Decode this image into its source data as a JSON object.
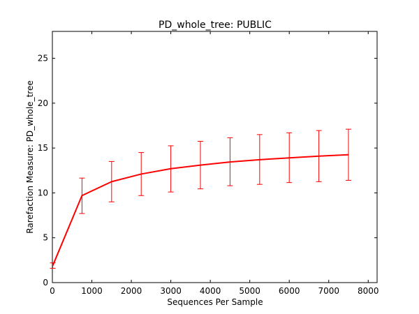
{
  "chart_data": {
    "type": "line",
    "title": "PD_whole_tree: PUBLIC",
    "xlabel": "Sequences Per Sample",
    "ylabel": "Rarefaction Measure: PD_whole_tree",
    "xlim": [
      0,
      8225
    ],
    "ylim": [
      0,
      28
    ],
    "xticks": [
      0,
      1000,
      2000,
      3000,
      4000,
      5000,
      6000,
      7000,
      8000
    ],
    "yticks": [
      0,
      5,
      10,
      15,
      20,
      25
    ],
    "grid": false,
    "legend": "none",
    "series": [
      {
        "color": "#ff0000",
        "x": [
          10,
          750,
          1500,
          2250,
          3000,
          3750,
          4500,
          5250,
          6000,
          6750,
          7500
        ],
        "y": [
          1.9,
          9.7,
          11.25,
          12.1,
          12.7,
          13.1,
          13.45,
          13.7,
          13.9,
          14.1,
          14.25
        ],
        "err_low": [
          1.6,
          7.7,
          9.0,
          9.7,
          10.1,
          10.45,
          10.8,
          10.95,
          11.15,
          11.25,
          11.4
        ],
        "err_high": [
          2.2,
          11.65,
          13.5,
          14.5,
          15.25,
          15.75,
          16.15,
          16.5,
          16.7,
          16.95,
          17.1
        ]
      }
    ]
  }
}
